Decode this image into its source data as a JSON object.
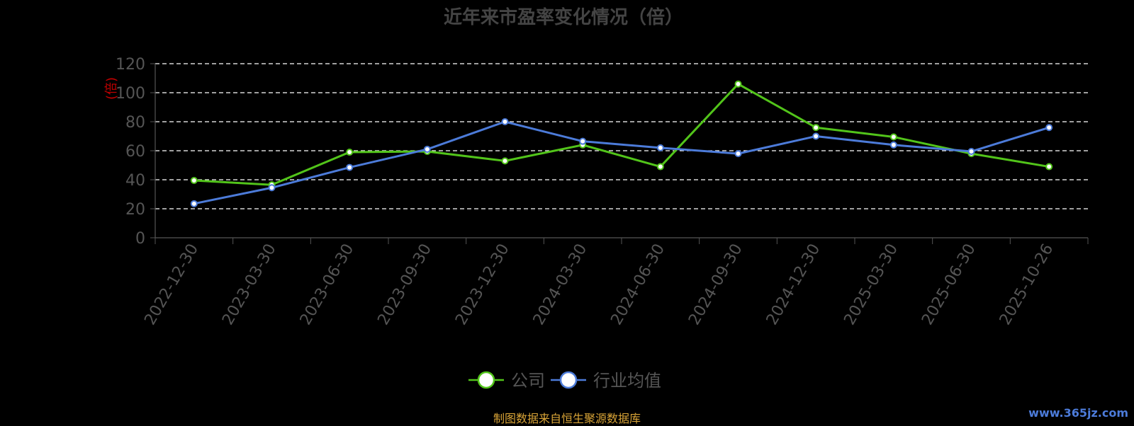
{
  "chart_data": {
    "type": "line",
    "title": "近年来市盈率变化情况（倍）",
    "ylabel": "(倍)",
    "categories": [
      "2022-12-30",
      "2023-03-30",
      "2023-06-30",
      "2023-09-30",
      "2023-12-30",
      "2024-03-30",
      "2024-06-30",
      "2024-09-30",
      "2024-12-30",
      "2025-03-30",
      "2025-06-30",
      "2025-10-26"
    ],
    "ylim": [
      0,
      120
    ],
    "yticks": [
      "0",
      "20",
      "40",
      "60",
      "80",
      "100",
      "120"
    ],
    "grid": true,
    "legend_position": "bottom",
    "series": [
      {
        "name": "公司",
        "color": "#52c41a",
        "values": [
          39.5,
          36.5,
          59,
          59.5,
          53,
          64,
          49,
          106,
          76,
          69.5,
          58,
          49
        ]
      },
      {
        "name": "行业均值",
        "color": "#4c7bd9",
        "values": [
          23.5,
          34.5,
          48.5,
          61,
          80,
          66.5,
          62,
          58,
          70,
          64,
          59.5,
          76
        ]
      }
    ]
  },
  "footer": {
    "source": "制图数据来自恒生聚源数据库",
    "watermark": "www.365jz.com"
  }
}
